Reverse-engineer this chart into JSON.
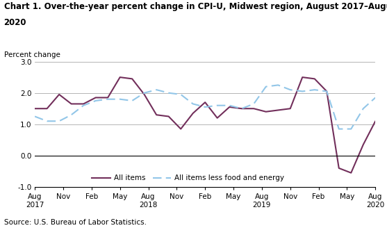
{
  "title_line1": "Chart 1. Over-the-year percent change in CPI-U, Midwest region, August 2017–August",
  "title_line2": "2020",
  "ylabel": "Percent change",
  "source": "Source: U.S. Bureau of Labor Statistics.",
  "ylim": [
    -1.0,
    3.0
  ],
  "yticks": [
    -1.0,
    0.0,
    1.0,
    2.0,
    3.0
  ],
  "all_items": [
    1.5,
    1.5,
    1.95,
    1.65,
    1.65,
    1.85,
    1.85,
    2.5,
    2.45,
    1.95,
    1.3,
    1.25,
    0.85,
    1.35,
    1.7,
    1.2,
    1.55,
    1.5,
    1.5,
    1.4,
    1.45,
    1.5,
    2.5,
    2.45,
    2.05,
    -0.4,
    -0.55,
    0.35,
    1.1
  ],
  "less_food_energy": [
    1.25,
    1.1,
    1.1,
    1.3,
    1.6,
    1.75,
    1.8,
    1.8,
    1.75,
    2.0,
    2.1,
    2.0,
    1.95,
    1.65,
    1.55,
    1.6,
    1.6,
    1.5,
    1.65,
    2.2,
    2.25,
    2.1,
    2.05,
    2.1,
    2.05,
    0.85,
    0.85,
    1.5,
    1.85
  ],
  "all_items_color": "#722F5B",
  "less_food_energy_color": "#92C6E8",
  "x_tick_labels": [
    "Aug\n2017",
    "Nov",
    "Feb",
    "May",
    "Aug\n2018",
    "Nov",
    "Feb",
    "May",
    "Aug\n2019",
    "Nov",
    "Feb",
    "May",
    "Aug\n2020"
  ],
  "x_tick_positions": [
    0,
    3,
    6,
    9,
    12,
    15,
    18,
    21,
    24,
    27,
    30,
    33,
    36
  ],
  "background_color": "#ffffff",
  "grid_color": "#aaaaaa"
}
